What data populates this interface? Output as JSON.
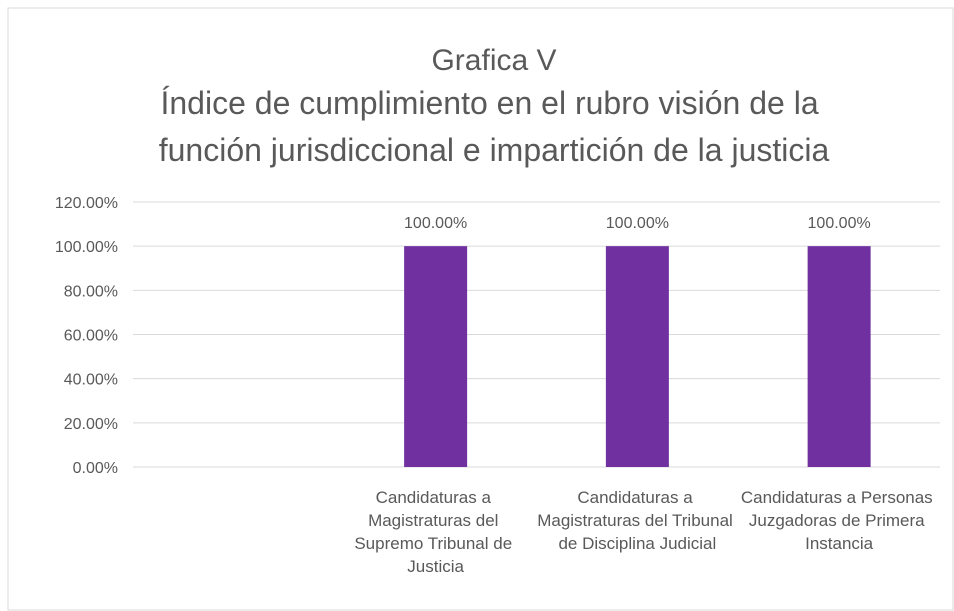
{
  "chart_data": {
    "type": "bar",
    "title": "Grafica V",
    "subtitle": "Índice de cumplimiento en el rubro visión de la función jurisdiccional e impartición de la justicia",
    "categories": [
      null,
      "Candidaturas a Magistraturas del Supremo Tribunal de Justicia",
      "Candidaturas a Magistraturas del Tribunal de Disciplina Judicial",
      "Candidaturas a Personas Juzgadoras de Primera Instancia"
    ],
    "values": [
      null,
      100,
      100,
      100
    ],
    "value_labels": [
      null,
      "100.00%",
      "100.00%",
      "100.00%"
    ],
    "color": "#7030a0",
    "ylim": [
      0,
      120
    ],
    "yticks": [
      {
        "value": 0,
        "label": "0.00%"
      },
      {
        "value": 20,
        "label": "20.00%"
      },
      {
        "value": 40,
        "label": "40.00%"
      },
      {
        "value": 60,
        "label": "60.00%"
      },
      {
        "value": 80,
        "label": "80.00%"
      },
      {
        "value": 100,
        "label": "100.00%"
      },
      {
        "value": 120,
        "label": "120.00%"
      }
    ],
    "grid": true
  }
}
